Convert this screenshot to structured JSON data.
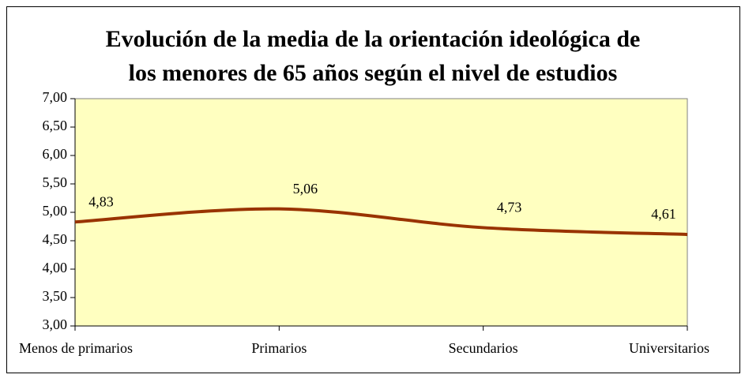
{
  "chart_data": {
    "type": "line",
    "title": [
      "Evolución de la media de la orientación ideológica de",
      "los menores de 65 años según el nivel de estudios"
    ],
    "categories": [
      "Menos de primarios",
      "Primarios",
      "Secundarios",
      "Universitarios"
    ],
    "series": [
      {
        "color": "#993300",
        "values": [
          4.83,
          5.06,
          4.73,
          4.61
        ],
        "value_labels": [
          "4,83",
          "5,06",
          "4,73",
          "4,61"
        ]
      }
    ],
    "ylim": [
      3,
      7
    ],
    "yticks": [
      {
        "value": 3,
        "label": "3,00"
      },
      {
        "value": 3.5,
        "label": "3,50"
      },
      {
        "value": 4,
        "label": "4,00"
      },
      {
        "value": 4.5,
        "label": "4,50"
      },
      {
        "value": 5,
        "label": "5,00"
      },
      {
        "value": 5.5,
        "label": "5,50"
      },
      {
        "value": 6,
        "label": "6,00"
      },
      {
        "value": 6.5,
        "label": "6,50"
      },
      {
        "value": 7,
        "label": "7,00"
      }
    ],
    "smooth": true,
    "plot_background": "#ffffc0"
  }
}
